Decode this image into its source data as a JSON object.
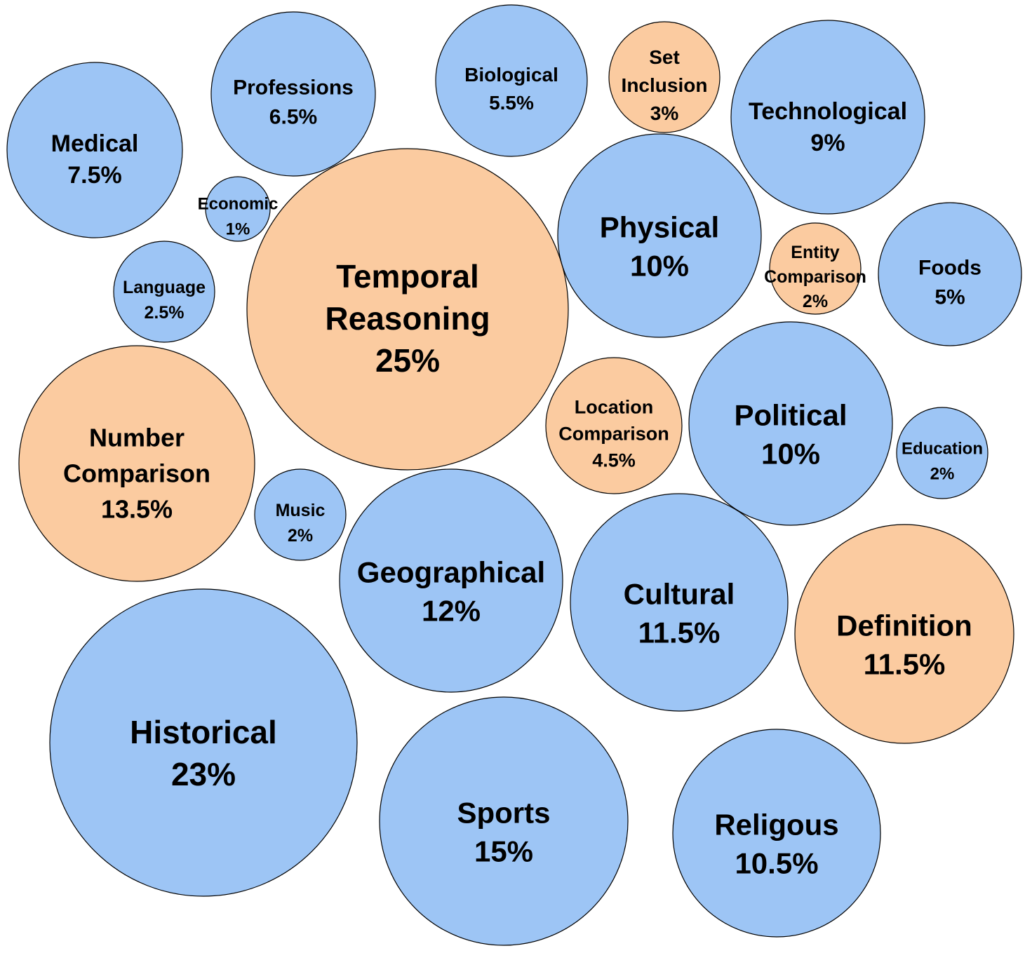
{
  "chart_data": {
    "type": "bubble",
    "legend": "none",
    "grid": false,
    "colors": {
      "blue": "#9dc5f5",
      "orange": "#fbcba0",
      "outline": "#000000"
    },
    "bubbles": [
      {
        "lines": [
          "Medical",
          "7.5%"
        ],
        "value": 7.5,
        "color": "blue"
      },
      {
        "lines": [
          "Professions",
          "6.5%"
        ],
        "value": 6.5,
        "color": "blue"
      },
      {
        "lines": [
          "Biological",
          "5.5%"
        ],
        "value": 5.5,
        "color": "blue"
      },
      {
        "lines": [
          "Set",
          "Inclusion",
          "3%"
        ],
        "value": 3,
        "color": "orange"
      },
      {
        "lines": [
          "Technological",
          "9%"
        ],
        "value": 9,
        "color": "blue"
      },
      {
        "lines": [
          "Economic",
          "1%"
        ],
        "value": 1,
        "color": "blue"
      },
      {
        "lines": [
          "Temporal",
          "Reasoning",
          "25%"
        ],
        "value": 25,
        "color": "orange"
      },
      {
        "lines": [
          "Physical",
          "10%"
        ],
        "value": 10,
        "color": "blue"
      },
      {
        "lines": [
          "Language",
          "2.5%"
        ],
        "value": 2.5,
        "color": "blue"
      },
      {
        "lines": [
          "Entity",
          "Comparison",
          "2%"
        ],
        "value": 2,
        "color": "orange"
      },
      {
        "lines": [
          "Foods",
          "5%"
        ],
        "value": 5,
        "color": "blue"
      },
      {
        "lines": [
          "Number",
          "Comparison",
          "13.5%"
        ],
        "value": 13.5,
        "color": "orange"
      },
      {
        "lines": [
          "Location",
          "Comparison",
          "4.5%"
        ],
        "value": 4.5,
        "color": "orange"
      },
      {
        "lines": [
          "Political",
          "10%"
        ],
        "value": 10,
        "color": "blue"
      },
      {
        "lines": [
          "Education",
          "2%"
        ],
        "value": 2,
        "color": "blue"
      },
      {
        "lines": [
          "Music",
          "2%"
        ],
        "value": 2,
        "color": "blue"
      },
      {
        "lines": [
          "Geographical",
          "12%"
        ],
        "value": 12,
        "color": "blue"
      },
      {
        "lines": [
          "Cultural",
          "11.5%"
        ],
        "value": 11.5,
        "color": "blue"
      },
      {
        "lines": [
          "Definition",
          "11.5%"
        ],
        "value": 11.5,
        "color": "orange"
      },
      {
        "lines": [
          "Historical",
          "23%"
        ],
        "value": 23,
        "color": "blue"
      },
      {
        "lines": [
          "Sports",
          "15%"
        ],
        "value": 15,
        "color": "blue"
      },
      {
        "lines": [
          "Religous",
          "10.5%"
        ],
        "value": 10.5,
        "color": "blue"
      }
    ]
  }
}
